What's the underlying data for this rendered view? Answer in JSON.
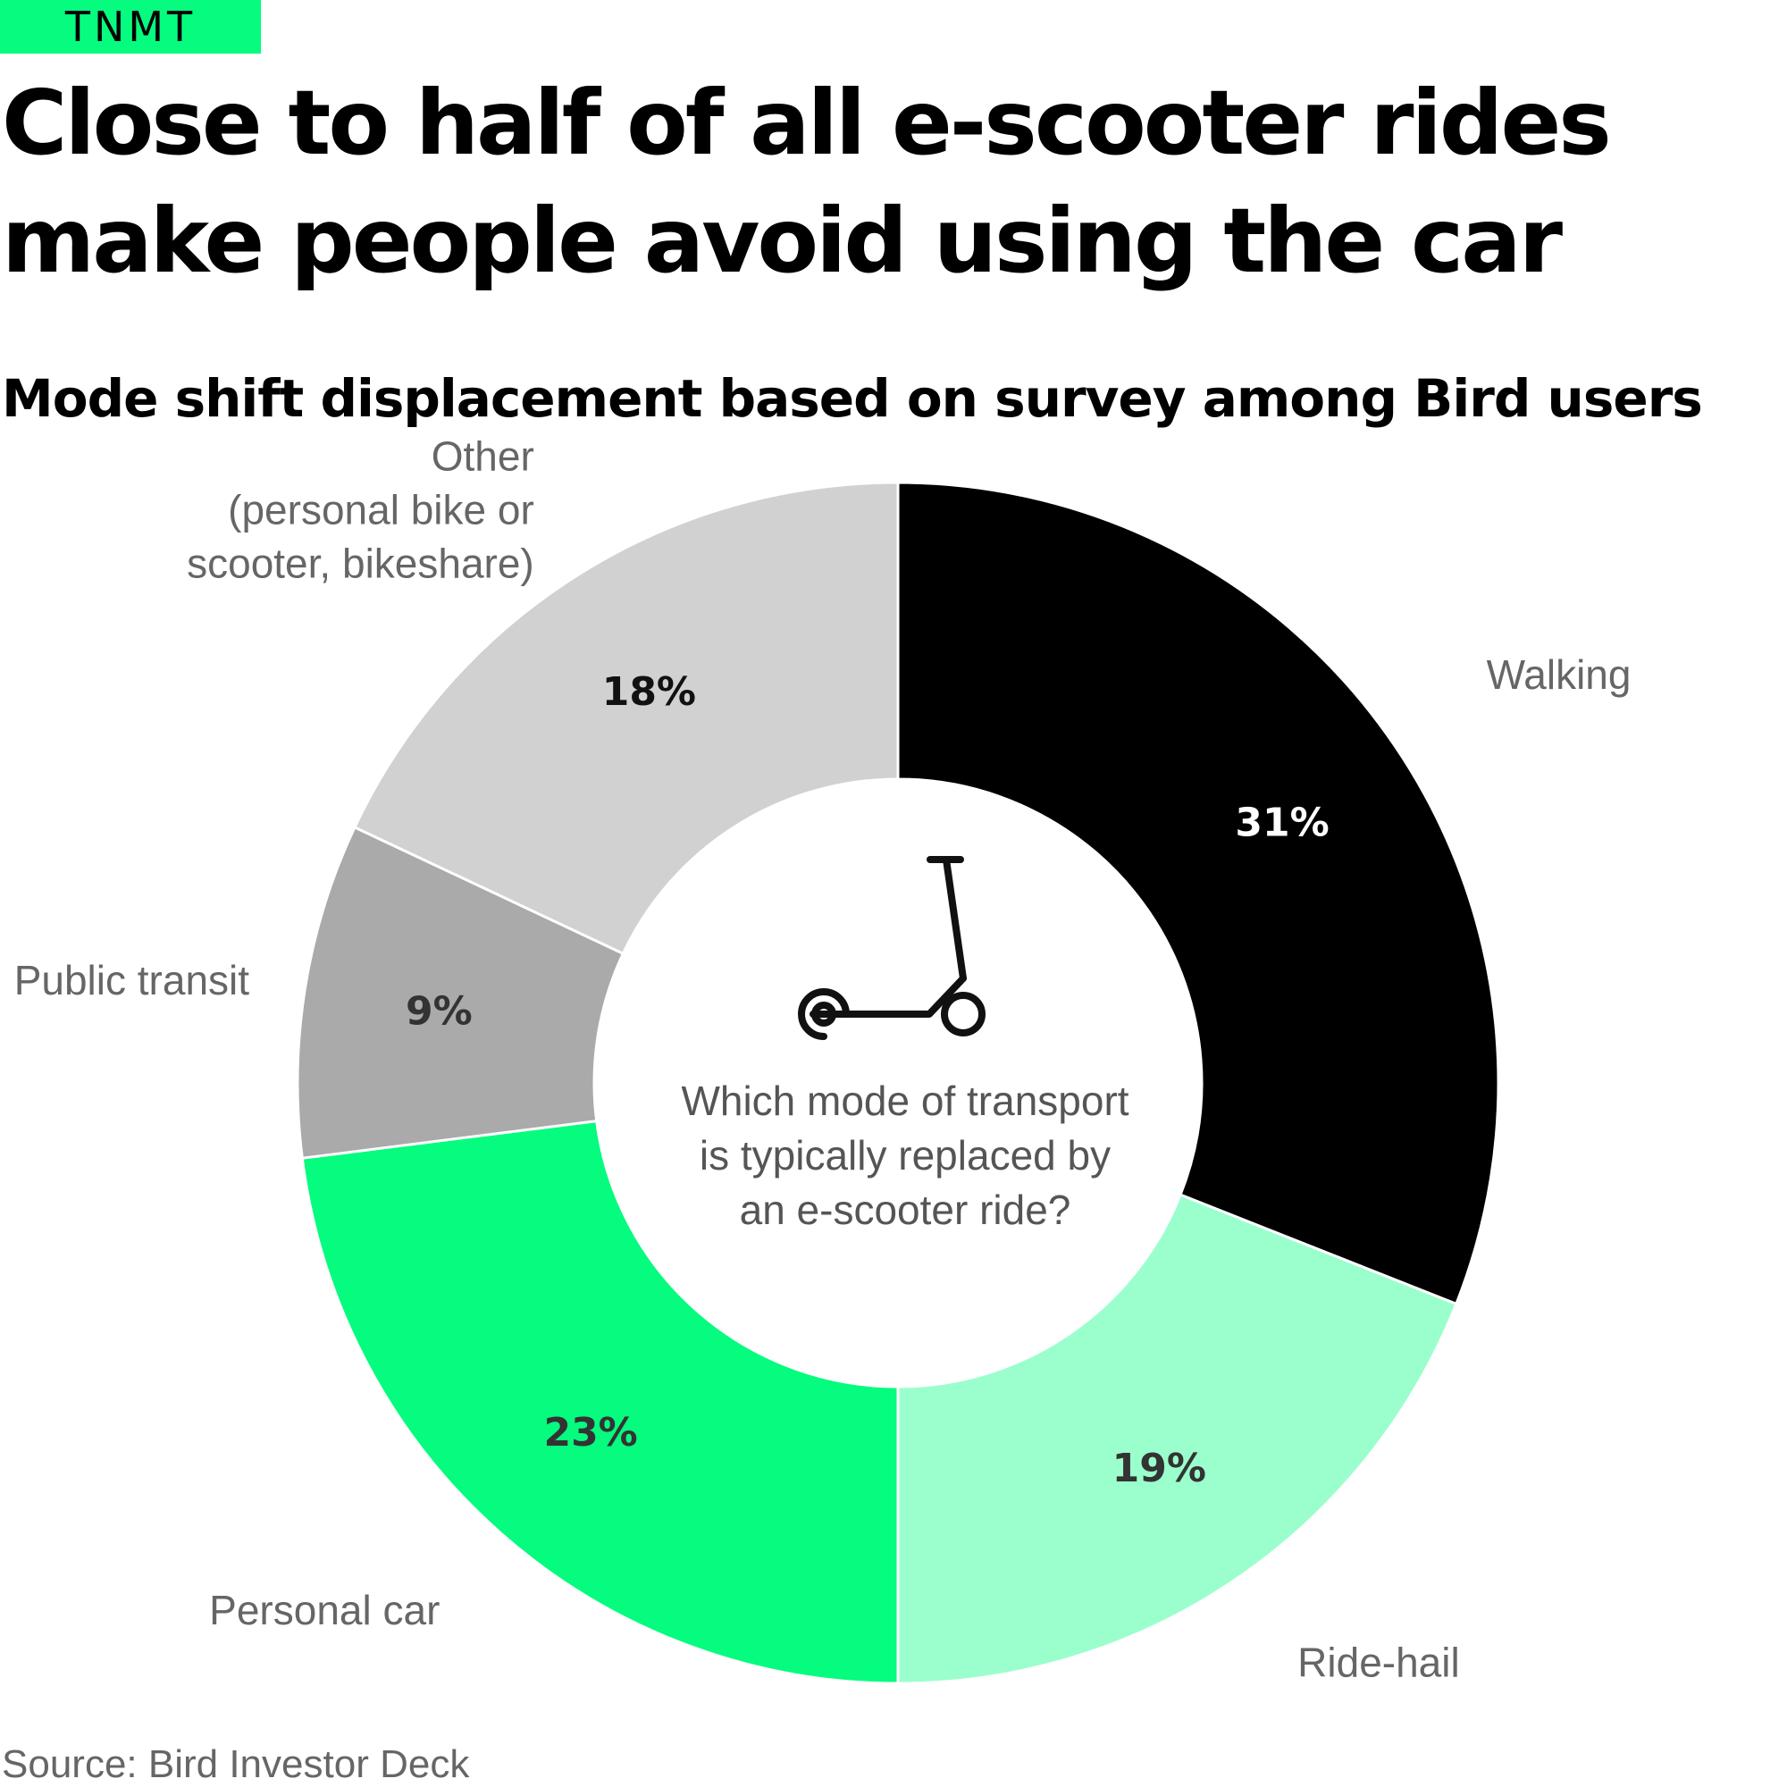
{
  "brand": "TNMT",
  "title": "Close to half of all e-scooter rides make people avoid using the car",
  "subtitle": "Mode shift displacement based on survey among Bird users",
  "source": "Source: Bird Investor Deck",
  "center_icon": "kick-scooter-icon",
  "chart_data": {
    "type": "pie",
    "donut": true,
    "start": "12 o'clock, clockwise",
    "center_text": [
      "Which mode of transport",
      "is typically replaced by",
      "an e-scooter ride?"
    ],
    "slices": [
      {
        "label": [
          "Walking"
        ],
        "value": 31,
        "value_label": "31%",
        "color": "#000000",
        "text_color": "#ffffff"
      },
      {
        "label": [
          "Ride-hail"
        ],
        "value": 19,
        "value_label": "19%",
        "color": "#9affcd",
        "text_color": "#333333"
      },
      {
        "label": [
          "Personal car"
        ],
        "value": 23,
        "value_label": "23%",
        "color": "#05fc7e",
        "text_color": "#333333"
      },
      {
        "label": [
          "Public transit"
        ],
        "value": 9,
        "value_label": "9%",
        "color": "#aaaaaa",
        "text_color": "#333333"
      },
      {
        "label": [
          "Other",
          "(personal bike or",
          "scooter, bikeshare)"
        ],
        "value": 18,
        "value_label": "18%",
        "color": "#d1d1d1",
        "text_color": "#111111"
      }
    ]
  }
}
